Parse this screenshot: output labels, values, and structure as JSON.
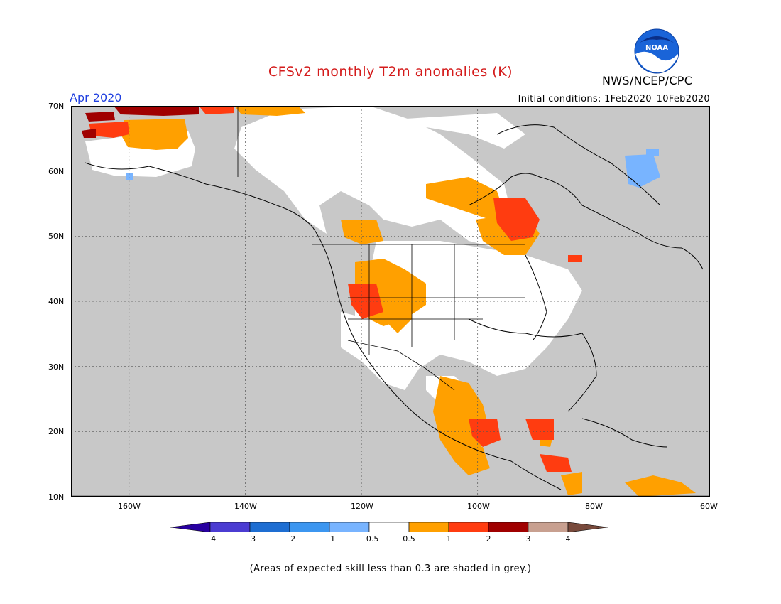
{
  "header": {
    "title": "CFSv2 monthly T2m anomalies (K)",
    "period": "Apr 2020",
    "initial_conditions": "Initial conditions: 1Feb2020–10Feb2020",
    "agency": "NWS/NCEP/CPC",
    "logo_text": "NOAA"
  },
  "map": {
    "lat_ticks": [
      "70N",
      "60N",
      "50N",
      "40N",
      "30N",
      "20N",
      "10N"
    ],
    "lon_ticks": [
      "160W",
      "140W",
      "120W",
      "100W",
      "80W",
      "60W"
    ],
    "lon_range": [
      -170,
      -60
    ],
    "lat_range": [
      10,
      70
    ],
    "colors": {
      "grey_low_skill": "#c8c8c8",
      "near_normal": "#ffffff",
      "warm_0_5_1": "#ffa000",
      "warm_1_2": "#ff3c10",
      "warm_2_3": "#a00000",
      "cool_m1_m0_5": "#78b4ff"
    }
  },
  "colorbar": {
    "labels": [
      "−4",
      "−3",
      "−2",
      "−1",
      "−0.5",
      "0.5",
      "1",
      "2",
      "3",
      "4"
    ],
    "colors": [
      "#2800a0",
      "#4b3cd2",
      "#1e6ed2",
      "#3c96f0",
      "#78b4ff",
      "#ffffff",
      "#ffa000",
      "#ff3c10",
      "#a00000",
      "#c8a090",
      "#784a3c"
    ]
  },
  "footnote": "(Areas of expected skill less than 0.3 are shaded in grey.)"
}
